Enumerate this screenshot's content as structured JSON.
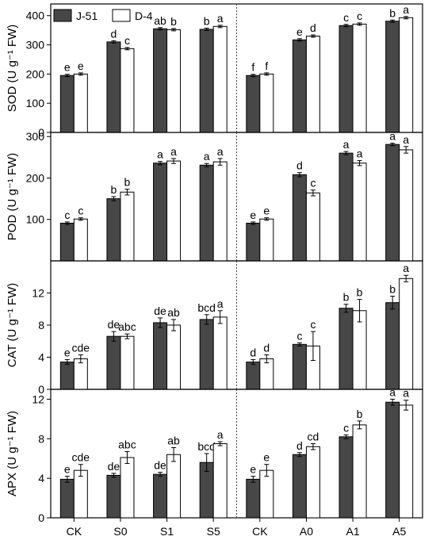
{
  "chart_data": {
    "type": "bar",
    "categories": [
      "CK",
      "S0",
      "S1",
      "S5",
      "CK",
      "A0",
      "A1",
      "A5"
    ],
    "legend": [
      {
        "name": "J-51",
        "color": "#474747"
      },
      {
        "name": "D-4",
        "color": "#ffffff"
      }
    ],
    "divider_after_index": 3,
    "panels": [
      {
        "ylabel": "SOD (U g⁻¹ FW)",
        "ylim": [
          0,
          440
        ],
        "yticks": [
          0,
          100,
          200,
          300,
          400
        ],
        "series": [
          {
            "name": "J-51",
            "values": [
              195,
              310,
              355,
              353,
              195,
              317,
              366,
              381
            ],
            "errors": [
              4,
              4,
              4,
              4,
              4,
              4,
              4,
              4
            ],
            "letters": [
              "e",
              "d",
              "ab",
              "b",
              "f",
              "e",
              "c",
              "b"
            ]
          },
          {
            "name": "D-4",
            "values": [
              200,
              287,
              352,
              363,
              200,
              330,
              371,
              393
            ],
            "errors": [
              4,
              4,
              4,
              4,
              4,
              4,
              4,
              4
            ],
            "letters": [
              "e",
              "c",
              "b",
              "a",
              "f",
              "d",
              "c",
              "a"
            ]
          }
        ]
      },
      {
        "ylabel": "POD (U g⁻¹ FW)",
        "ylim": [
          0,
          310
        ],
        "yticks": [
          100,
          200,
          300
        ],
        "series": [
          {
            "name": "J-51",
            "values": [
              91,
              150,
              236,
              231,
              91,
              208,
              260,
              281
            ],
            "errors": [
              3,
              5,
              4,
              4,
              3,
              5,
              4,
              3
            ],
            "letters": [
              "c",
              "b",
              "a",
              "a",
              "e",
              "d",
              "a",
              "a"
            ]
          },
          {
            "name": "D-4",
            "values": [
              101,
              166,
              241,
              239,
              101,
              164,
              236,
              268
            ],
            "errors": [
              3,
              7,
              6,
              8,
              3,
              7,
              6,
              8
            ],
            "letters": [
              "c",
              "b",
              "a",
              "a",
              "e",
              "c",
              "a",
              "a"
            ]
          }
        ]
      },
      {
        "ylabel": "CAT (U g⁻¹ FW)",
        "ylim": [
          0,
          16
        ],
        "yticks": [
          0,
          4,
          8,
          12
        ],
        "series": [
          {
            "name": "J-51",
            "values": [
              3.4,
              6.6,
              8.3,
              8.7,
              3.4,
              5.6,
              10.1,
              10.8
            ],
            "errors": [
              0.3,
              0.6,
              0.6,
              0.6,
              0.3,
              0.2,
              0.5,
              0.8
            ],
            "letters": [
              "e",
              "de",
              "de",
              "bcd",
              "d",
              "c",
              "b",
              "b"
            ]
          },
          {
            "name": "D-4",
            "values": [
              3.8,
              6.6,
              8.0,
              9.0,
              3.8,
              5.4,
              9.8,
              13.8
            ],
            "errors": [
              0.5,
              0.3,
              0.7,
              0.8,
              0.5,
              1.8,
              1.4,
              0.4
            ],
            "letters": [
              "cde",
              "abc",
              "ab",
              "a",
              "d",
              "c",
              "b",
              "a"
            ]
          }
        ]
      },
      {
        "ylabel": "APX (U g⁻¹ FW)",
        "ylim": [
          0,
          13
        ],
        "yticks": [
          0,
          4,
          8,
          12
        ],
        "series": [
          {
            "name": "J-51",
            "values": [
              3.9,
              4.3,
              4.4,
              5.6,
              3.9,
              6.4,
              8.2,
              11.7
            ],
            "errors": [
              0.3,
              0.2,
              0.2,
              0.9,
              0.3,
              0.2,
              0.2,
              0.3
            ],
            "letters": [
              "e",
              "de",
              "de",
              "bcd",
              "e",
              "d",
              "c",
              "a"
            ]
          },
          {
            "name": "D-4",
            "values": [
              4.8,
              6.1,
              6.4,
              7.5,
              4.8,
              7.2,
              9.4,
              11.4
            ],
            "errors": [
              0.6,
              0.6,
              0.7,
              0.2,
              0.6,
              0.3,
              0.4,
              0.5
            ],
            "letters": [
              "cde",
              "abc",
              "ab",
              "a",
              "e",
              "cd",
              "b",
              "a"
            ]
          }
        ]
      }
    ]
  }
}
